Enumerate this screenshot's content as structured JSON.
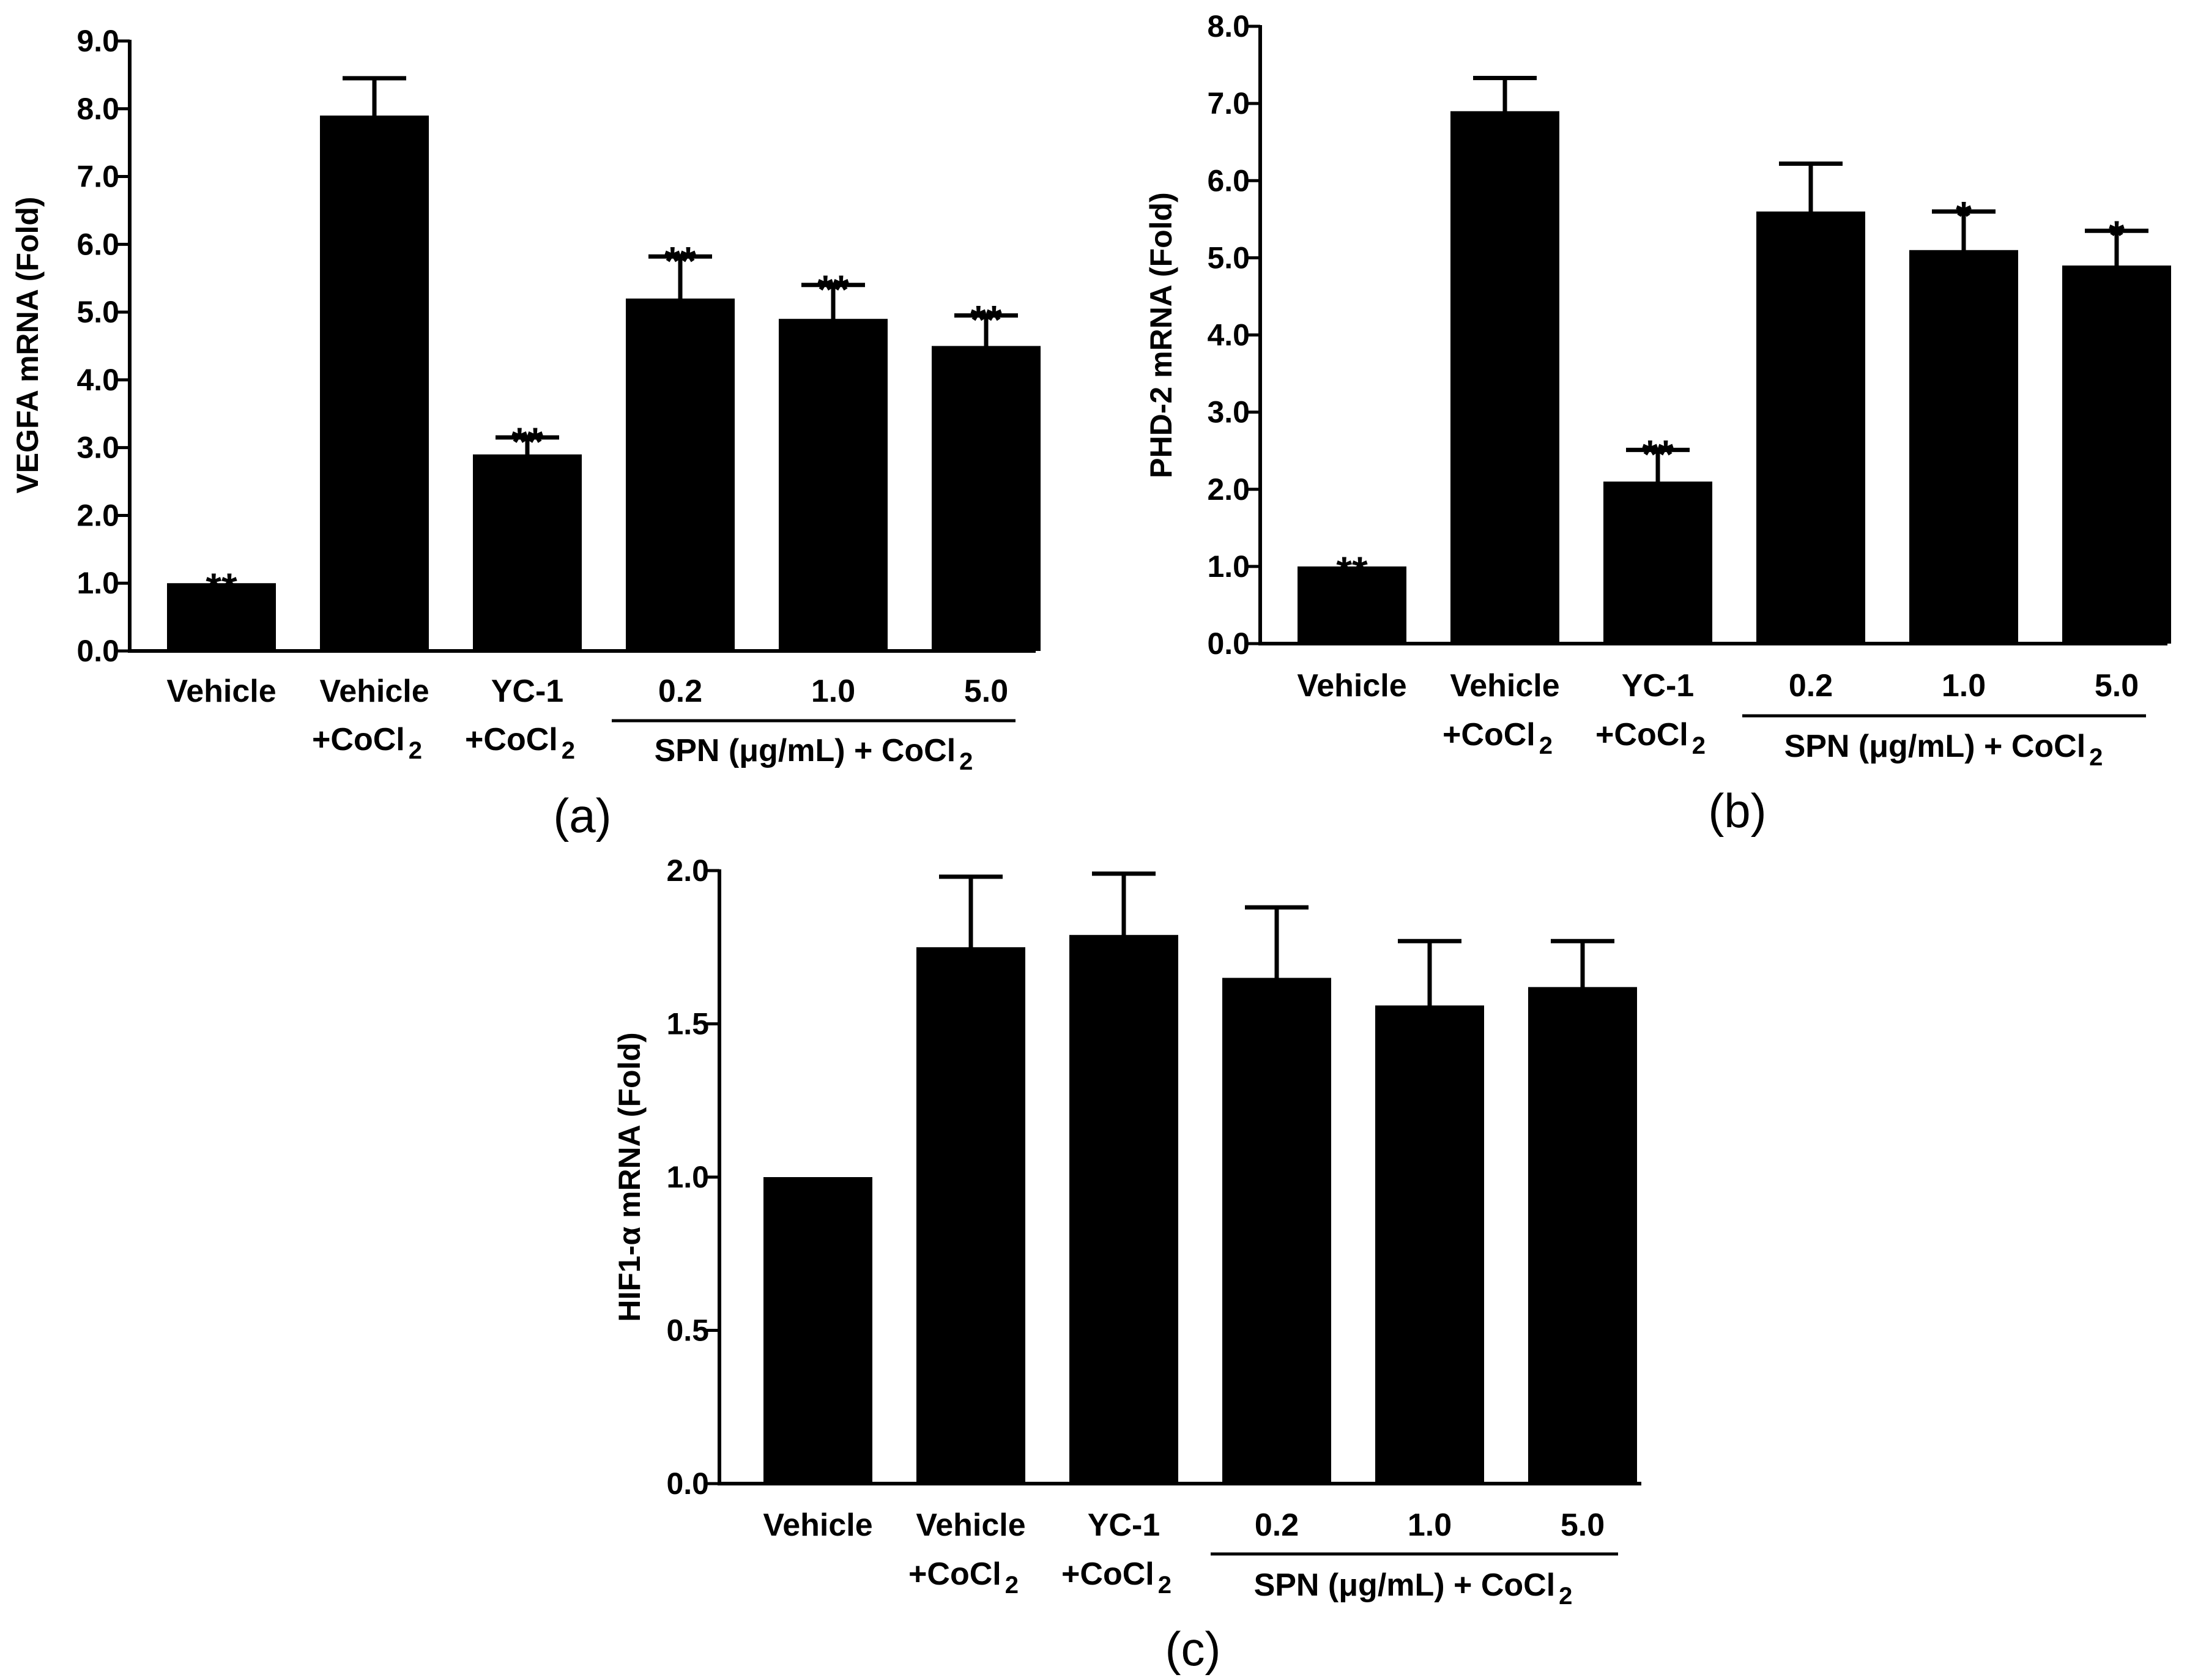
{
  "colors": {
    "bar": "#000000",
    "background": "#ffffff"
  },
  "chart_data": [
    {
      "type": "bar",
      "panel_label": "(a)",
      "ylabel": "VEGFA mRNA (Fold)",
      "ylim": [
        0,
        9
      ],
      "yticks": [
        "0.0",
        "1.0",
        "2.0",
        "3.0",
        "4.0",
        "5.0",
        "6.0",
        "7.0",
        "8.0",
        "9.0"
      ],
      "categories": [
        {
          "line1": "Vehicle",
          "line2": ""
        },
        {
          "line1": "Vehicle",
          "line2": "+CoCl",
          "sub": "2"
        },
        {
          "line1": "YC-1",
          "line2": "+CoCl",
          "sub": "2"
        },
        {
          "line1": "0.2",
          "line2": ""
        },
        {
          "line1": "1.0",
          "line2": ""
        },
        {
          "line1": "5.0",
          "line2": ""
        }
      ],
      "values": [
        1.0,
        7.9,
        2.9,
        5.2,
        4.9,
        4.5
      ],
      "errors": [
        0.0,
        0.55,
        0.25,
        0.62,
        0.5,
        0.45
      ],
      "significance": [
        "**",
        "",
        "**",
        "**",
        "**",
        "**"
      ],
      "group_label": {
        "text": "SPN (μg/mL) + CoCl",
        "sub": "2",
        "from": 3,
        "to": 5
      }
    },
    {
      "type": "bar",
      "panel_label": "(b)",
      "ylabel": "PHD-2 mRNA (Fold)",
      "ylim": [
        0,
        8
      ],
      "yticks": [
        "0.0",
        "1.0",
        "2.0",
        "3.0",
        "4.0",
        "5.0",
        "6.0",
        "7.0",
        "8.0"
      ],
      "categories": [
        {
          "line1": "Vehicle",
          "line2": ""
        },
        {
          "line1": "Vehicle",
          "line2": "+CoCl",
          "sub": "2"
        },
        {
          "line1": "YC-1",
          "line2": "+CoCl",
          "sub": "2"
        },
        {
          "line1": "0.2",
          "line2": ""
        },
        {
          "line1": "1.0",
          "line2": ""
        },
        {
          "line1": "5.0",
          "line2": ""
        }
      ],
      "values": [
        1.0,
        6.9,
        2.1,
        5.6,
        5.1,
        4.9
      ],
      "errors": [
        0.0,
        0.43,
        0.41,
        0.62,
        0.5,
        0.45
      ],
      "significance": [
        "**",
        "",
        "**",
        "",
        "*",
        "*"
      ],
      "group_label": {
        "text": "SPN (μg/mL) + CoCl",
        "sub": "2",
        "from": 3,
        "to": 5
      }
    },
    {
      "type": "bar",
      "panel_label": "(c)",
      "ylabel": "HIF1-α mRNA (Fold)",
      "ylim": [
        0,
        2
      ],
      "yticks": [
        "0.0",
        "0.5",
        "1.0",
        "1.5",
        "2.0"
      ],
      "categories": [
        {
          "line1": "Vehicle",
          "line2": ""
        },
        {
          "line1": "Vehicle",
          "line2": "+CoCl",
          "sub": "2"
        },
        {
          "line1": "YC-1",
          "line2": "+CoCl",
          "sub": "2"
        },
        {
          "line1": "0.2",
          "line2": ""
        },
        {
          "line1": "1.0",
          "line2": ""
        },
        {
          "line1": "5.0",
          "line2": ""
        }
      ],
      "values": [
        1.0,
        1.75,
        1.79,
        1.65,
        1.56,
        1.62
      ],
      "errors": [
        0.0,
        0.23,
        0.2,
        0.23,
        0.21,
        0.15
      ],
      "significance": [
        "",
        "",
        "",
        "",
        "",
        ""
      ],
      "group_label": {
        "text": "SPN (μg/mL) + CoCl",
        "sub": "2",
        "from": 3,
        "to": 5
      }
    }
  ]
}
